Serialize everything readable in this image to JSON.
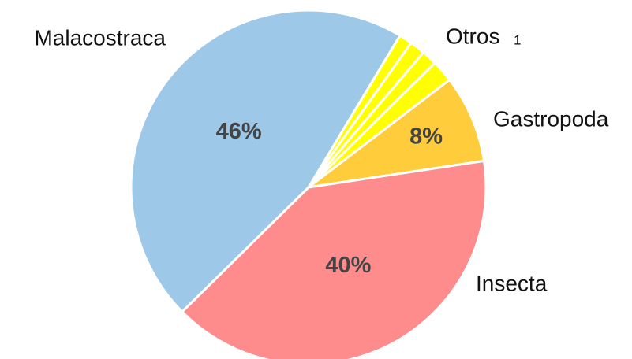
{
  "chart_data": {
    "type": "pie",
    "categories": [
      null,
      null,
      null,
      null,
      "Gastropoda",
      "Insecta",
      "Malacostraca"
    ],
    "values": [
      1.2,
      1.4,
      1.4,
      2.0,
      8,
      40,
      46
    ],
    "value_labels": [
      null,
      null,
      null,
      null,
      "8%",
      "40%",
      "46%"
    ],
    "colors": [
      "#ffff00",
      "#ffff00",
      "#ffff00",
      "#ffff00",
      "#ffcc3c",
      "#ff8c8c",
      "#9dc8e8"
    ],
    "annotations": [
      {
        "text": "Otros",
        "footnote": "1"
      }
    ]
  }
}
